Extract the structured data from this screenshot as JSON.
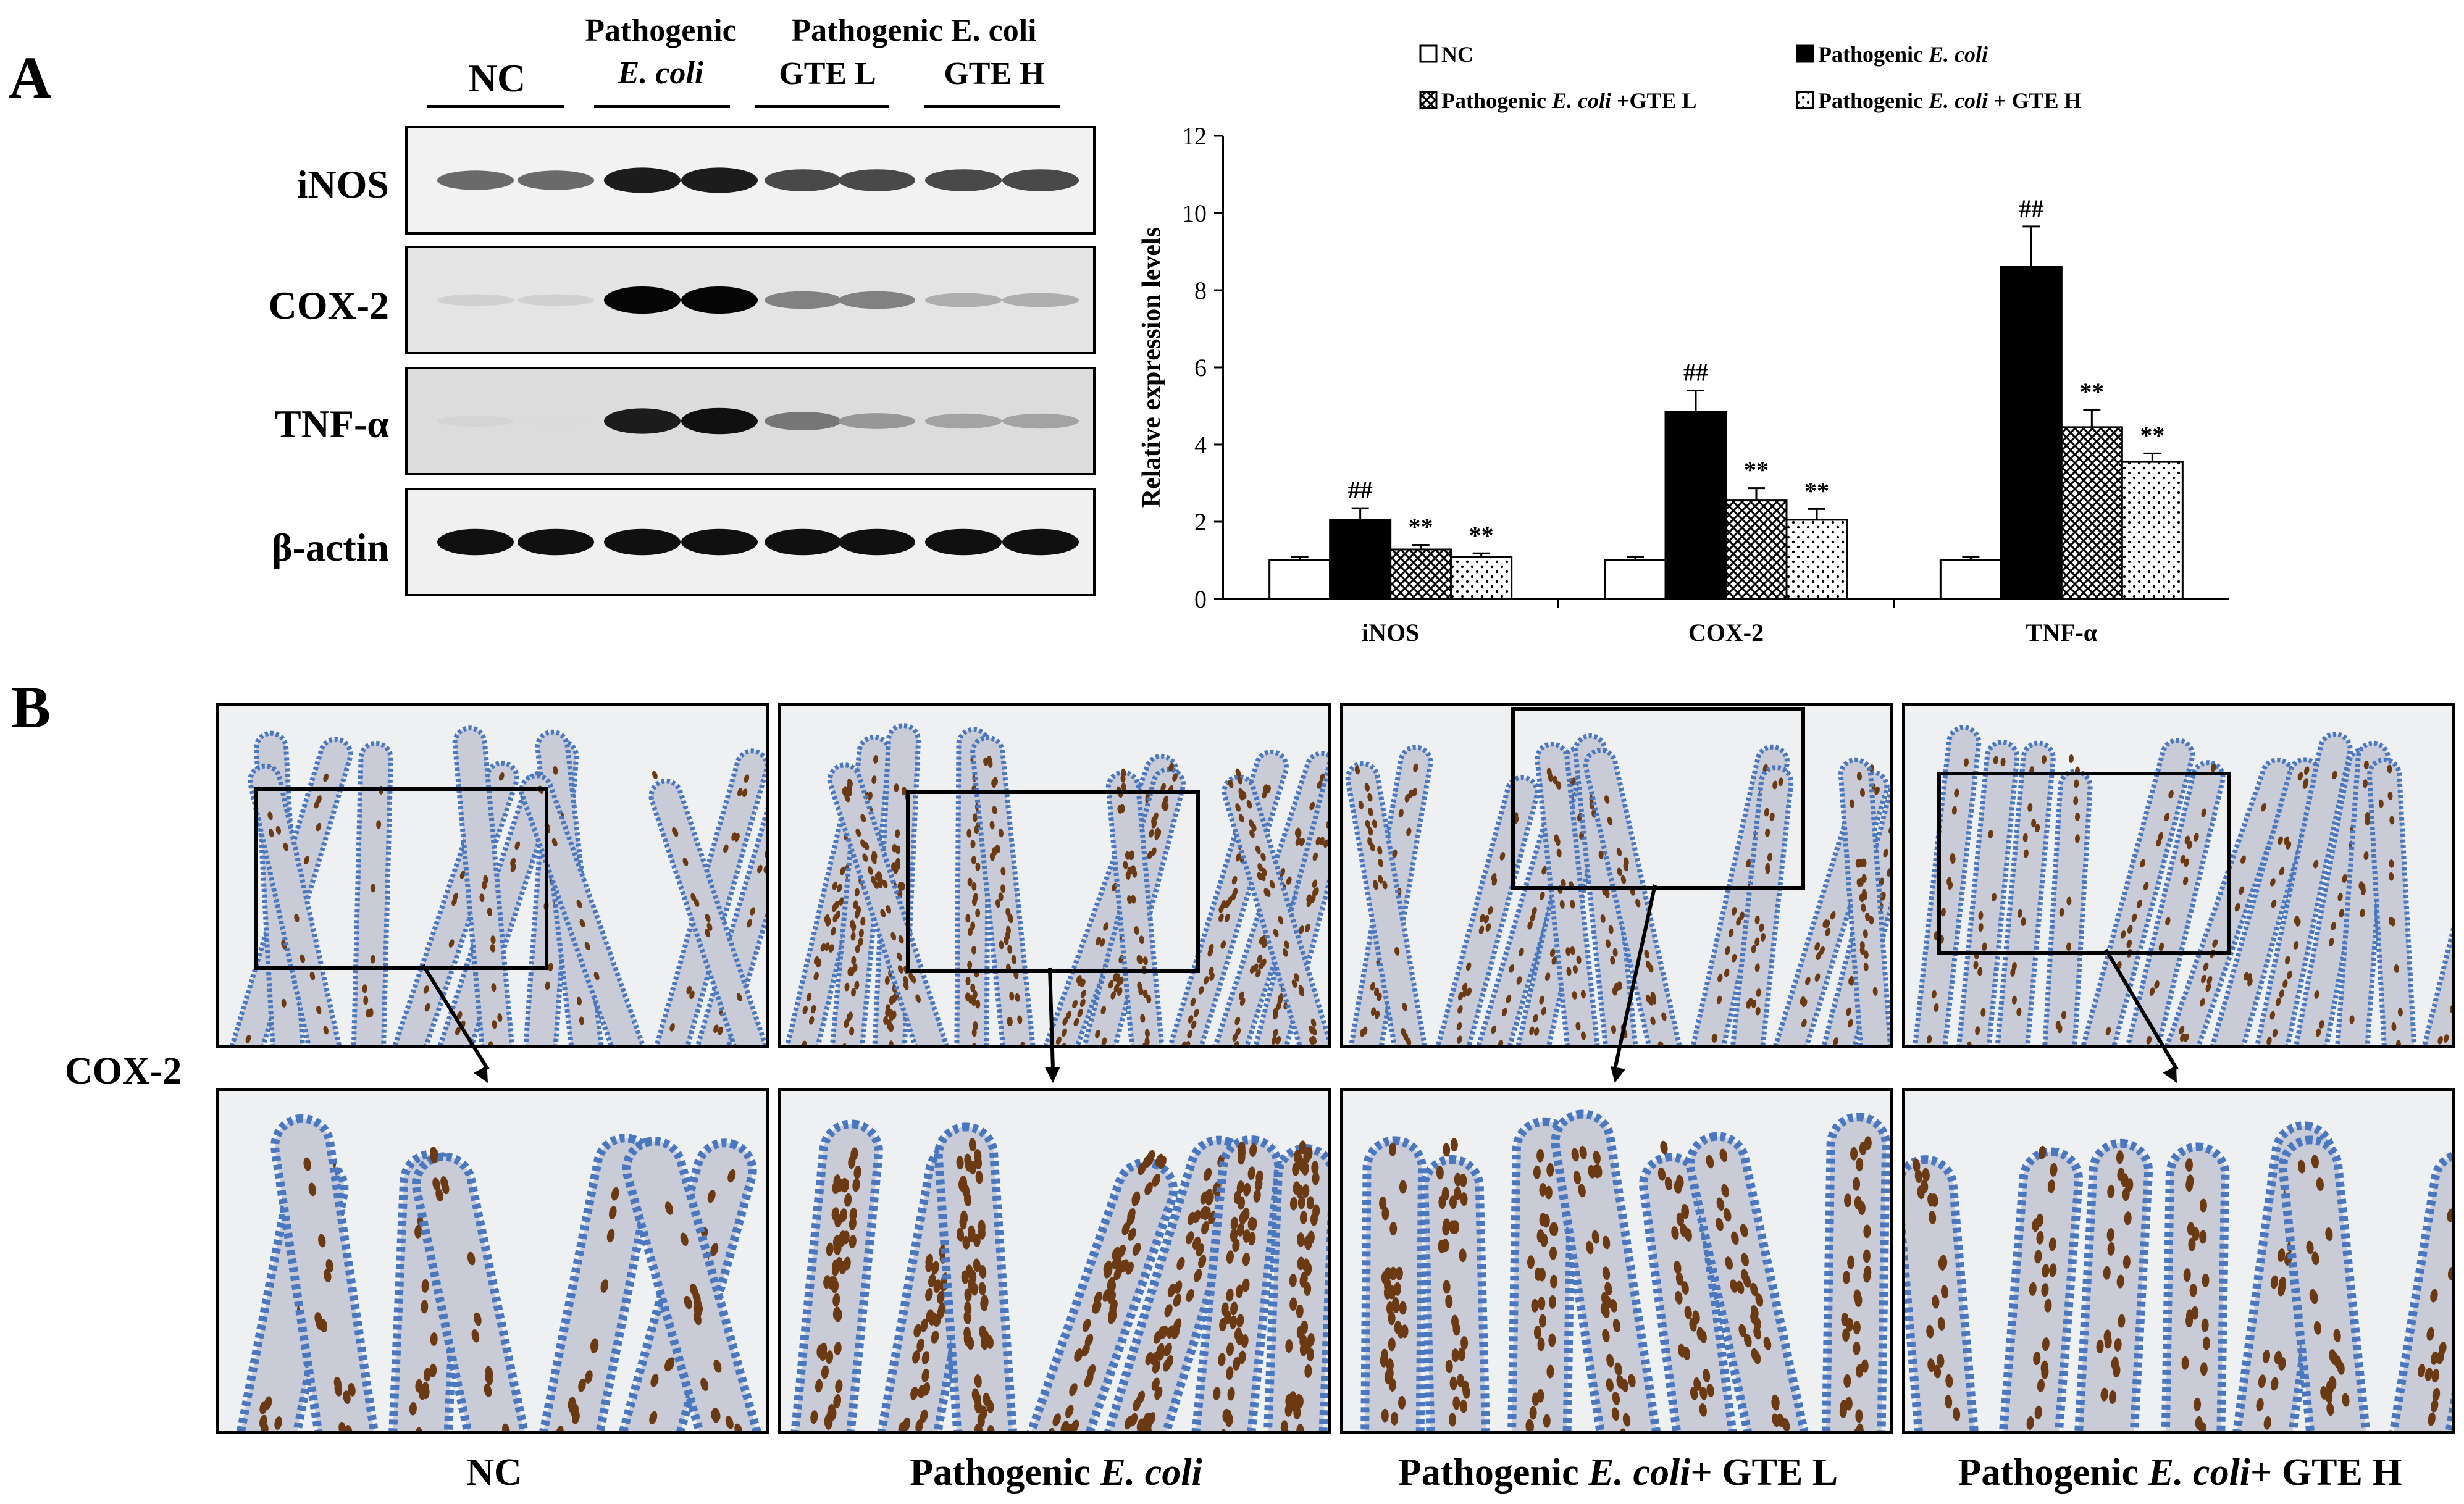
{
  "panel_a": {
    "letter": "A",
    "lane_headers": [
      {
        "line1": "",
        "line2": "NC",
        "italic2": false
      },
      {
        "line1": "Pathogenic",
        "line2": "E. coli",
        "italic2": true
      },
      {
        "line1": "Pathogenic E. coli",
        "line2": "GTE L",
        "italic2": false
      },
      {
        "line1": "",
        "line2": "GTE H",
        "italic2": false
      }
    ],
    "blot_rows": [
      {
        "label": "iNOS",
        "bands": [
          0.55,
          0.55,
          0.9,
          0.9,
          0.7,
          0.7,
          0.7,
          0.7
        ]
      },
      {
        "label": "COX-2",
        "bands": [
          0.1,
          0.1,
          1.0,
          1.0,
          0.45,
          0.45,
          0.25,
          0.25
        ]
      },
      {
        "label": "TNF-α",
        "bands": [
          0.08,
          0.05,
          0.9,
          0.95,
          0.5,
          0.35,
          0.3,
          0.3
        ]
      },
      {
        "label": "β-actin",
        "bands": [
          0.95,
          0.95,
          0.95,
          0.95,
          0.95,
          0.95,
          0.95,
          0.95
        ]
      }
    ]
  },
  "chart_data": {
    "type": "bar",
    "categories": [
      "iNOS",
      "COX-2",
      "TNF-α"
    ],
    "ylabel": "Relative expression levels",
    "ylim": [
      0,
      12
    ],
    "yticks": [
      "0",
      "2",
      "4",
      "6",
      "8",
      "10",
      "12"
    ],
    "legend_placement": "top",
    "series": [
      {
        "name": "NC",
        "values": [
          1.0,
          1.0,
          1.0
        ],
        "errors": [
          0.08,
          0.08,
          0.08
        ],
        "fill": "white",
        "marks": [
          "",
          "",
          ""
        ]
      },
      {
        "name": "Pathogenic E. coli",
        "values": [
          2.05,
          4.85,
          8.6
        ],
        "errors": [
          0.3,
          0.55,
          1.05
        ],
        "fill": "black",
        "marks": [
          "##",
          "##",
          "##"
        ]
      },
      {
        "name": "Pathogenic E. coli +GTE L",
        "values": [
          1.28,
          2.55,
          4.45
        ],
        "errors": [
          0.12,
          0.32,
          0.45
        ],
        "fill": "crosshatch",
        "marks": [
          "**",
          "**",
          "**"
        ]
      },
      {
        "name": "Pathogenic E. coli + GTE H",
        "values": [
          1.08,
          2.05,
          3.55
        ],
        "errors": [
          0.1,
          0.28,
          0.22
        ],
        "fill": "dots",
        "marks": [
          "**",
          "**",
          "**"
        ]
      }
    ]
  },
  "panel_b": {
    "letter": "B",
    "row_label": "COX-2",
    "captions": [
      {
        "pre": "NC",
        "italic": "",
        "post": ""
      },
      {
        "pre": "Pathogenic ",
        "italic": "E. coli",
        "post": ""
      },
      {
        "pre": "Pathogenic ",
        "italic": "E. coli",
        "post": "+ GTE L"
      },
      {
        "pre": "Pathogenic ",
        "italic": "E. coli",
        "post": "+ GTE H"
      }
    ],
    "stain_colors": {
      "tissue": "#c9ccd6",
      "nuclei": "#4a78c0",
      "positive": "#6b3a12",
      "background": "#eef0f2"
    }
  }
}
